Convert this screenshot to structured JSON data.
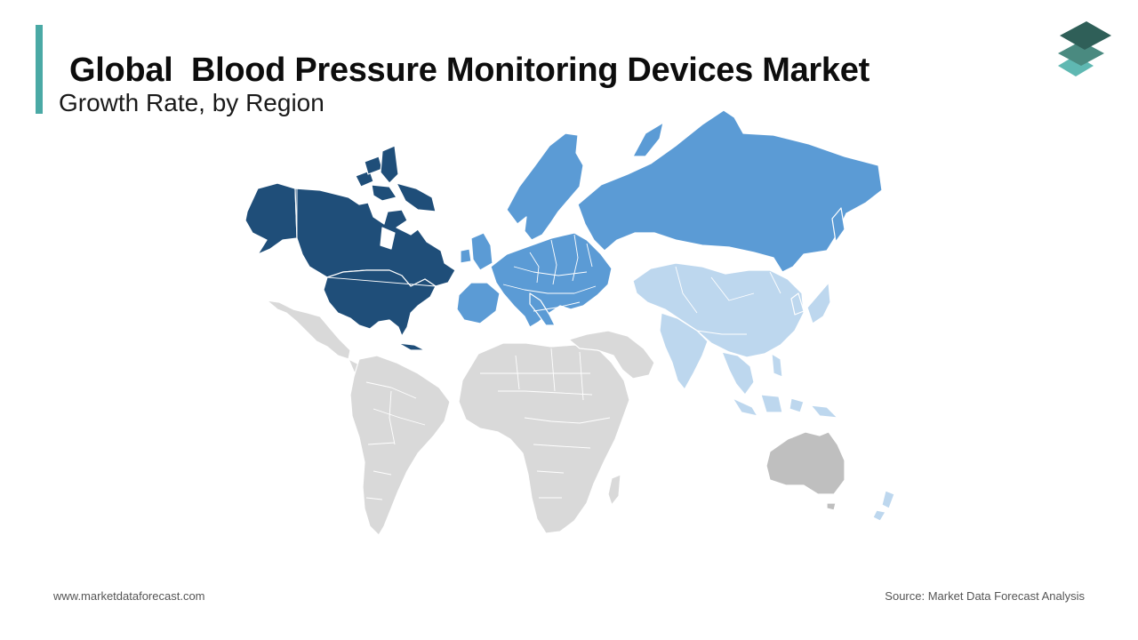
{
  "header": {
    "title": "Global  Blood Pressure Monitoring Devices Market",
    "subtitle": "Growth Rate, by Region"
  },
  "footer": {
    "website": "www.marketdataforecast.com",
    "source": "Source: Market Data Forecast Analysis"
  },
  "colors": {
    "accent": "#4aa9a5",
    "north_america": "#1f4e79",
    "europe": "#5b9bd5",
    "asia_pacific": "#bdd7ee",
    "australia": "#bfbfbf",
    "latin_america_africa": "#d9d9d9",
    "logo_dark": "#2f5f58",
    "logo_mid": "#4a8a80",
    "logo_light": "#5fb8b2"
  },
  "logo_icon": "stacked-layers-icon"
}
